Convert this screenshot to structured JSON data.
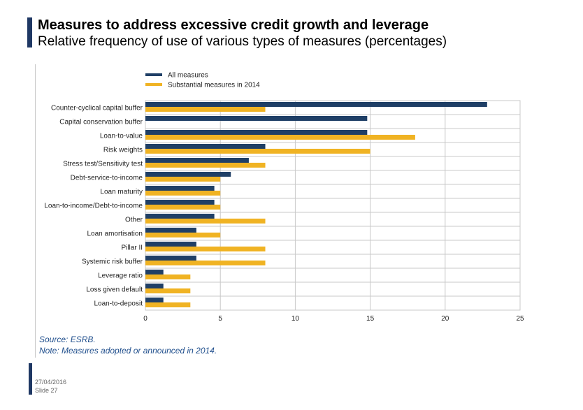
{
  "header": {
    "title": "Measures to address excessive credit growth and leverage",
    "subtitle": "Relative frequency of use of various types of measures (percentages)"
  },
  "footer": {
    "source": "Source: ESRB.",
    "note": "Note: Measures adopted or announced in 2014.",
    "date": "27/04/2016",
    "slide": "Slide 27"
  },
  "colors": {
    "accent": "#1f3864",
    "series1": "#1f3f66",
    "series2": "#f0b323",
    "footnote": "#1f4e8c",
    "grid": "#c8c8c8"
  },
  "chart_data": {
    "type": "bar",
    "orientation": "horizontal",
    "categories": [
      "Counter-cyclical capital buffer",
      "Capital conservation buffer",
      "Loan-to-value",
      "Risk weights",
      "Stress test/Sensitivity test",
      "Debt-service-to-income",
      "Loan maturity",
      "Loan-to-income/Debt-to-income",
      "Other",
      "Loan amortisation",
      "Pillar II",
      "Systemic risk buffer",
      "Leverage ratio",
      "Loss given default",
      "Loan-to-deposit"
    ],
    "series": [
      {
        "name": "All measures",
        "values": [
          22.8,
          14.8,
          14.8,
          8.0,
          6.9,
          5.7,
          4.6,
          4.6,
          4.6,
          3.4,
          3.4,
          3.4,
          1.2,
          1.2,
          1.2
        ]
      },
      {
        "name": "Substantial measures in 2014",
        "values": [
          8,
          0,
          18,
          15,
          8,
          5,
          5,
          5,
          8,
          5,
          8,
          8,
          3,
          3,
          3
        ]
      }
    ],
    "xlim": [
      0,
      25
    ],
    "xticks": [
      "0",
      "5",
      "10",
      "15",
      "20",
      "25"
    ],
    "grid": true,
    "legend_position": "top-left"
  }
}
